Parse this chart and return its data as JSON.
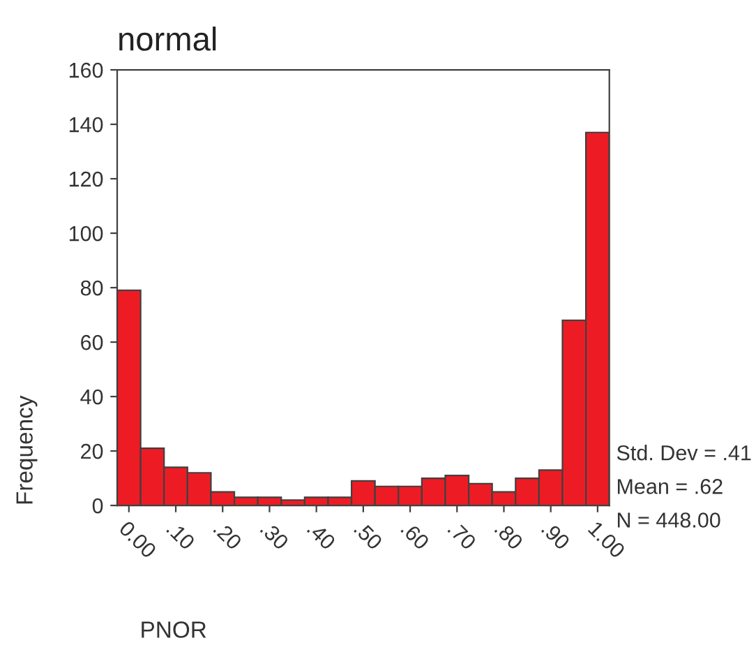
{
  "chart_data": {
    "type": "histogram",
    "title": "normal",
    "xlabel": "PNOR",
    "ylabel": "Frequency",
    "bins": [
      -0.025,
      0.025,
      0.075,
      0.125,
      0.175,
      0.225,
      0.275,
      0.325,
      0.375,
      0.425,
      0.475,
      0.525,
      0.575,
      0.625,
      0.675,
      0.725,
      0.775,
      0.825,
      0.875,
      0.925,
      0.975,
      1.025
    ],
    "values": [
      79,
      21,
      14,
      12,
      5,
      3,
      3,
      2,
      3,
      3,
      9,
      7,
      7,
      10,
      11,
      8,
      5,
      10,
      13,
      68,
      137
    ],
    "color": "#ed1c24",
    "xlim": [
      -0.025,
      1.025
    ],
    "xticks": [
      {
        "value": 0,
        "label": "0.00"
      },
      {
        "value": 0.1,
        "label": ".10"
      },
      {
        "value": 0.2,
        "label": ".20"
      },
      {
        "value": 0.3,
        "label": ".30"
      },
      {
        "value": 0.4,
        "label": ".40"
      },
      {
        "value": 0.5,
        "label": ".50"
      },
      {
        "value": 0.6,
        "label": ".60"
      },
      {
        "value": 0.7,
        "label": ".70"
      },
      {
        "value": 0.8,
        "label": ".80"
      },
      {
        "value": 0.9,
        "label": ".90"
      },
      {
        "value": 1.0,
        "label": "1.00"
      }
    ],
    "ylim": [
      0,
      160
    ],
    "yticks": [
      0,
      20,
      40,
      60,
      80,
      100,
      120,
      140,
      160
    ],
    "grid": false,
    "annotations": [
      "Std. Dev = .41",
      "Mean = .62",
      "N = 448.00"
    ]
  }
}
